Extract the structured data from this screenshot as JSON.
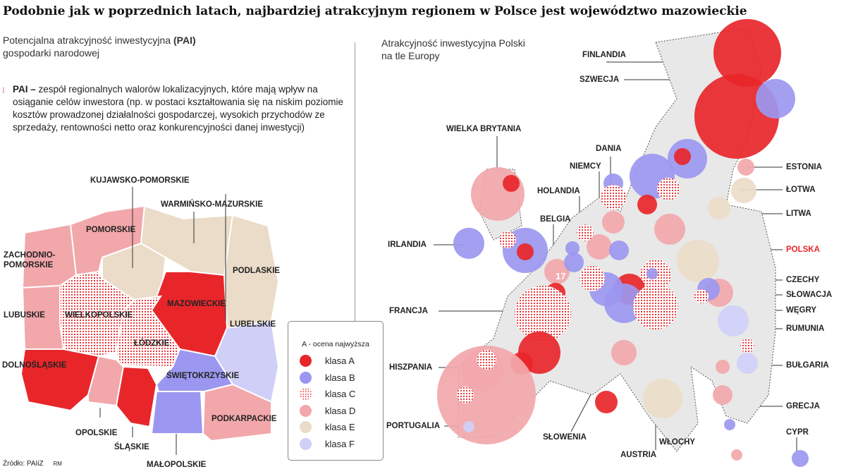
{
  "title": "Podobnie jak w poprzednich latach, najbardziej atrakcyjnym regionem w Polsce jest województwo mazowieckie",
  "left": {
    "subtitle_a": "Potencjalna atrakcyjność inwestycyjna ",
    "subtitle_b": "(PAI)",
    "subtitle_c": "gospodarki narodowej",
    "def_term": "PAI – ",
    "def_text": "zespół regionalnych walorów lokalizacyjnych, które mają wpływ na osiąganie celów inwestora (np. w postaci kształtowania się na niskim poziomie kosztów prowadzonej działalności gospodarczej, wysokich przychodów ze sprzedaży, rentowności netto oraz konkurencyjności danej inwestycji)",
    "regions": [
      "KUJAWSKO-POMORSKIE",
      "WARMIŃSKO-MAZURSKIE",
      "ZACHODNIO-",
      "POMORSKIE",
      "POMORSKIE",
      "PODLASKIE",
      "MAZOWIECKIE",
      "LUBUSKIE",
      "WIELKOPOLSKIE",
      "ŁÓDZKIE",
      "LUBELSKIE",
      "DOLNOŚLĄSKIE",
      "ŚWIĘTOKRZYSKIE",
      "PODKARPACKIE",
      "OPOLSKIE",
      "ŚLĄSKIE",
      "MAŁOPOLSKIE"
    ]
  },
  "legend": {
    "header": "A - ocena najwyższa",
    "items": [
      {
        "label": "klasa A",
        "color": "#e8262a"
      },
      {
        "label": "klasa B",
        "color": "#9b97f0"
      },
      {
        "label": "klasa C",
        "color": "#e8262a"
      },
      {
        "label": "klasa D",
        "color": "#f2a7ab"
      },
      {
        "label": "klasa E",
        "color": "#eadcc8"
      },
      {
        "label": "klasa F",
        "color": "#d0cff8"
      }
    ]
  },
  "right": {
    "subtitle_a": "Atrakcyjność inwestycyjna Polski",
    "subtitle_b": "na tle Europy",
    "marker": "17",
    "countries": [
      "FINLANDIA",
      "SZWECJA",
      "WIELKA BRYTANIA",
      "DANIA",
      "NIEMCY",
      "HOLANDIA",
      "BELGIA",
      "IRLANDIA",
      "FRANCJA",
      "HISZPANIA",
      "PORTUGALIA",
      "SŁOWENIA",
      "AUSTRIA",
      "WŁOCHY",
      "ESTONIA",
      "ŁOTWA",
      "LITWA",
      "POLSKA",
      "CZECHY",
      "SŁOWACJA",
      "WĘGRY",
      "RUMUNIA",
      "BUŁGARIA",
      "GRECJA",
      "CYPR"
    ]
  },
  "footer": {
    "source": "Źródło: PAIiZ",
    "author": "RM"
  }
}
